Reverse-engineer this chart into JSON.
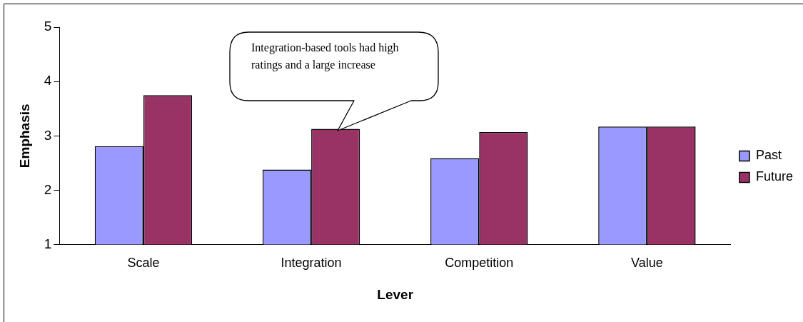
{
  "chart_data": {
    "type": "bar",
    "xlabel": "Lever",
    "ylabel": "Emphasis",
    "categories": [
      "Scale",
      "Integration",
      "Competition",
      "Value"
    ],
    "series": [
      {
        "name": "Past",
        "color": "#9999ff",
        "values": [
          2.81,
          2.38,
          2.59,
          3.17
        ]
      },
      {
        "name": "Future",
        "color": "#993366",
        "values": [
          3.75,
          3.13,
          3.07,
          3.17
        ]
      }
    ],
    "ylim": [
      1,
      5
    ],
    "yticks": [
      1,
      2,
      3,
      4,
      5
    ],
    "grid": false,
    "legend": "right",
    "annotations": [
      "Integration-based tools had high ratings and a large increase"
    ]
  }
}
